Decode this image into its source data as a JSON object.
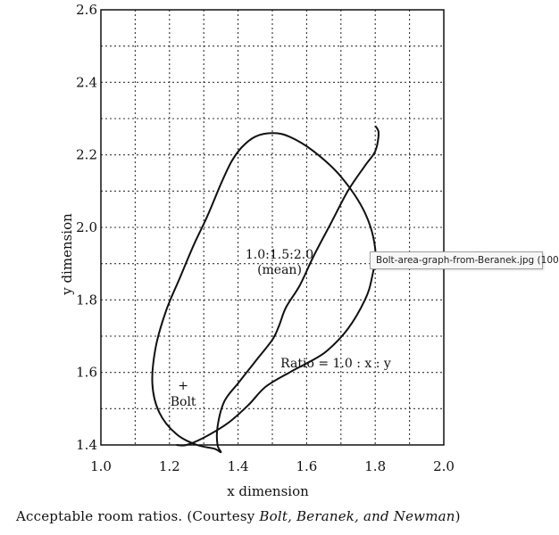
{
  "chart_data": {
    "type": "line",
    "xlabel": "x dimension",
    "ylabel": "y dimension",
    "xlim": [
      1.0,
      2.0
    ],
    "ylim": [
      1.4,
      2.6
    ],
    "x_ticks": [
      "1.0",
      "1.2",
      "1.4",
      "1.6",
      "1.8",
      "2.0"
    ],
    "y_ticks": [
      "1.4",
      "1.6",
      "1.8",
      "2.0",
      "2.2",
      "2.4",
      "2.6"
    ],
    "grid": true,
    "series": [
      {
        "x": [
          1.22,
          1.25,
          1.3,
          1.37,
          1.43,
          1.48,
          1.55,
          1.61,
          1.66,
          1.72,
          1.77,
          1.79,
          1.8,
          1.77,
          1.7,
          1.62,
          1.55,
          1.5,
          1.45,
          1.41,
          1.38,
          1.35,
          1.31,
          1.27,
          1.23,
          1.19,
          1.16,
          1.15,
          1.17,
          1.22,
          1.28,
          1.33,
          1.35,
          1.34,
          1.34,
          1.36,
          1.4,
          1.45,
          1.5,
          1.52,
          1.54,
          1.58,
          1.62,
          1.67,
          1.72,
          1.77,
          1.8,
          1.81,
          1.8
        ],
        "y": [
          1.4,
          1.4,
          1.42,
          1.46,
          1.51,
          1.56,
          1.6,
          1.63,
          1.66,
          1.72,
          1.8,
          1.86,
          1.94,
          2.04,
          2.14,
          2.21,
          2.25,
          2.26,
          2.25,
          2.22,
          2.18,
          2.12,
          2.03,
          1.95,
          1.86,
          1.77,
          1.67,
          1.57,
          1.49,
          1.43,
          1.4,
          1.39,
          1.38,
          1.4,
          1.45,
          1.52,
          1.57,
          1.63,
          1.69,
          1.73,
          1.78,
          1.84,
          1.92,
          2.01,
          2.1,
          2.17,
          2.21,
          2.26,
          2.28
        ]
      }
    ],
    "annotations": {
      "mean_line1": "1.0:1.5:2.0",
      "mean_line2": "(mean)",
      "ratio": "Ratio = 1.0 : x : y",
      "bolt_marker": "+",
      "bolt_label": "Bolt"
    },
    "bolt_point": {
      "x": 1.24,
      "y": 1.565
    }
  },
  "caption": {
    "part1": "Acceptable room ratios. (Courtesy ",
    "part2": "Bolt, Beranek, and Newman",
    "part3": ")"
  },
  "tooltip": {
    "text": "Bolt-area-graph-from-Beranek.jpg (100"
  }
}
